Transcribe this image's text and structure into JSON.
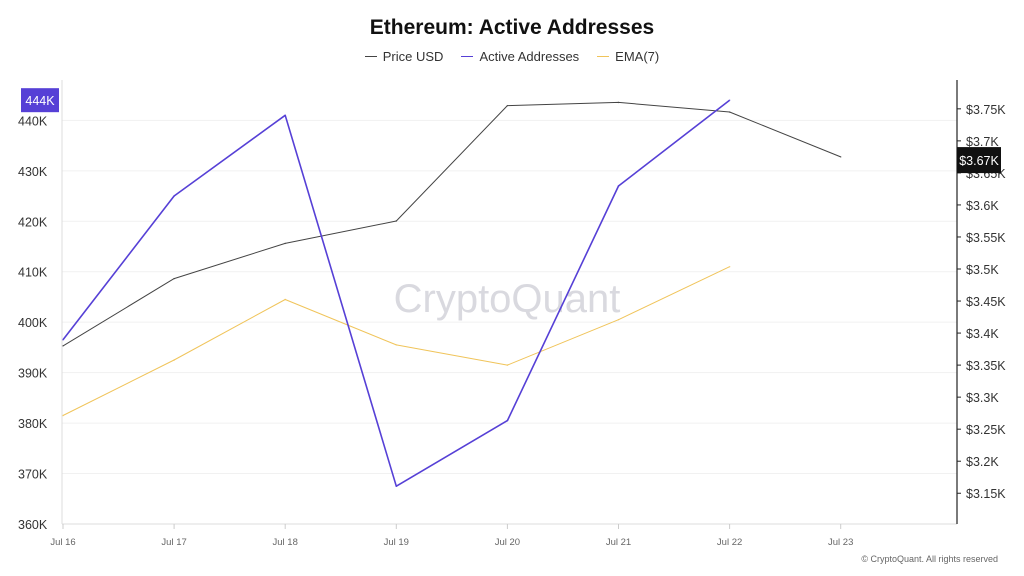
{
  "chart_data": {
    "type": "line",
    "title": "Ethereum: Active Addresses",
    "x": [
      "Jul 16",
      "Jul 17",
      "Jul 18",
      "Jul 19",
      "Jul 20",
      "Jul 21",
      "Jul 22",
      "Jul 23"
    ],
    "series": [
      {
        "name": "Price USD",
        "axis": "right",
        "color": "#444444",
        "values": [
          3380,
          3485,
          3540,
          3575,
          3755,
          3760,
          3745,
          3675
        ]
      },
      {
        "name": "Active Addresses",
        "axis": "left",
        "color": "#5640d6",
        "values": [
          396500,
          425000,
          441000,
          367500,
          380500,
          427000,
          444000,
          null
        ]
      },
      {
        "name": "EMA(7)",
        "axis": "left",
        "color": "#f0c45a",
        "values": [
          381500,
          392500,
          404500,
          395500,
          391500,
          400500,
          411000,
          null
        ]
      }
    ],
    "yleft": {
      "ylim": [
        360000,
        448000
      ],
      "ticks": [
        "360K",
        "370K",
        "380K",
        "390K",
        "400K",
        "410K",
        "420K",
        "430K",
        "440K"
      ],
      "tick_values": [
        360000,
        370000,
        380000,
        390000,
        400000,
        410000,
        420000,
        430000,
        440000
      ]
    },
    "yright": {
      "ylim": [
        3102,
        3795
      ],
      "ticks": [
        "$3.15K",
        "$3.2K",
        "$3.25K",
        "$3.3K",
        "$3.35K",
        "$3.4K",
        "$3.45K",
        "$3.5K",
        "$3.55K",
        "$3.6K",
        "$3.65K",
        "$3.7K",
        "$3.75K"
      ],
      "tick_values": [
        3150,
        3200,
        3250,
        3300,
        3350,
        3400,
        3450,
        3500,
        3550,
        3600,
        3650,
        3700,
        3750
      ]
    },
    "left_badge": {
      "label": "444K",
      "value": 444000,
      "color": "#5640d6"
    },
    "right_badge": {
      "label": "$3.67K",
      "value": 3670,
      "color": "#111111"
    },
    "watermark": "CryptoQuant",
    "legend_position": "top-center",
    "grid": true
  },
  "footer": {
    "copyright": "© CryptoQuant. All rights reserved"
  }
}
